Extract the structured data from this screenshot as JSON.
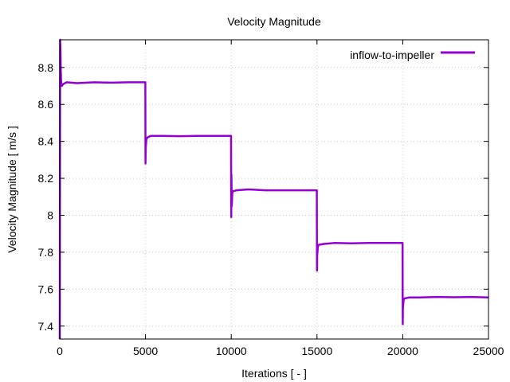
{
  "chart_data": {
    "type": "line",
    "title": "Velocity Magnitude",
    "xlabel": "Iterations [ - ]",
    "ylabel": "Velocity Magnitude [ m/s ]",
    "xlim": [
      0,
      25000
    ],
    "ylim": [
      7.33,
      8.95
    ],
    "xticks": [
      0,
      5000,
      10000,
      15000,
      20000,
      25000
    ],
    "xtick_labels": [
      "0",
      "5000",
      "10000",
      "15000",
      "20000",
      "25000"
    ],
    "yticks": [
      7.4,
      7.6,
      7.8,
      8.0,
      8.2,
      8.4,
      8.6,
      8.8
    ],
    "ytick_labels": [
      "7.4",
      "7.6",
      "7.8",
      "8",
      "8.2",
      "8.4",
      "8.6",
      "8.8"
    ],
    "grid": true,
    "legend_position": "top-right",
    "series": [
      {
        "name": "inflow-to-impeller",
        "color": "#9400d3",
        "x": [
          0,
          20,
          40,
          60,
          80,
          120,
          200,
          400,
          1000,
          2000,
          3000,
          4000,
          4990,
          5000,
          5010,
          5050,
          5100,
          5300,
          6000,
          7000,
          8000,
          9000,
          9990,
          10000,
          10010,
          10030,
          10060,
          10100,
          10300,
          11000,
          12000,
          13000,
          14000,
          14990,
          15000,
          15010,
          15050,
          15100,
          15400,
          16000,
          17000,
          18000,
          19000,
          19990,
          20000,
          20010,
          20050,
          20100,
          20400,
          21000,
          22000,
          23000,
          24000,
          25000
        ],
        "y": [
          7.33,
          8.95,
          8.9,
          8.78,
          8.72,
          8.7,
          8.71,
          8.72,
          8.715,
          8.72,
          8.718,
          8.72,
          8.72,
          8.28,
          8.36,
          8.41,
          8.42,
          8.43,
          8.43,
          8.428,
          8.43,
          8.43,
          8.43,
          7.99,
          8.22,
          8.05,
          8.12,
          8.13,
          8.135,
          8.14,
          8.135,
          8.135,
          8.135,
          8.135,
          7.7,
          7.78,
          7.83,
          7.84,
          7.845,
          7.85,
          7.848,
          7.85,
          7.85,
          7.85,
          7.41,
          7.5,
          7.54,
          7.55,
          7.555,
          7.555,
          7.558,
          7.556,
          7.558,
          7.555
        ]
      }
    ]
  }
}
